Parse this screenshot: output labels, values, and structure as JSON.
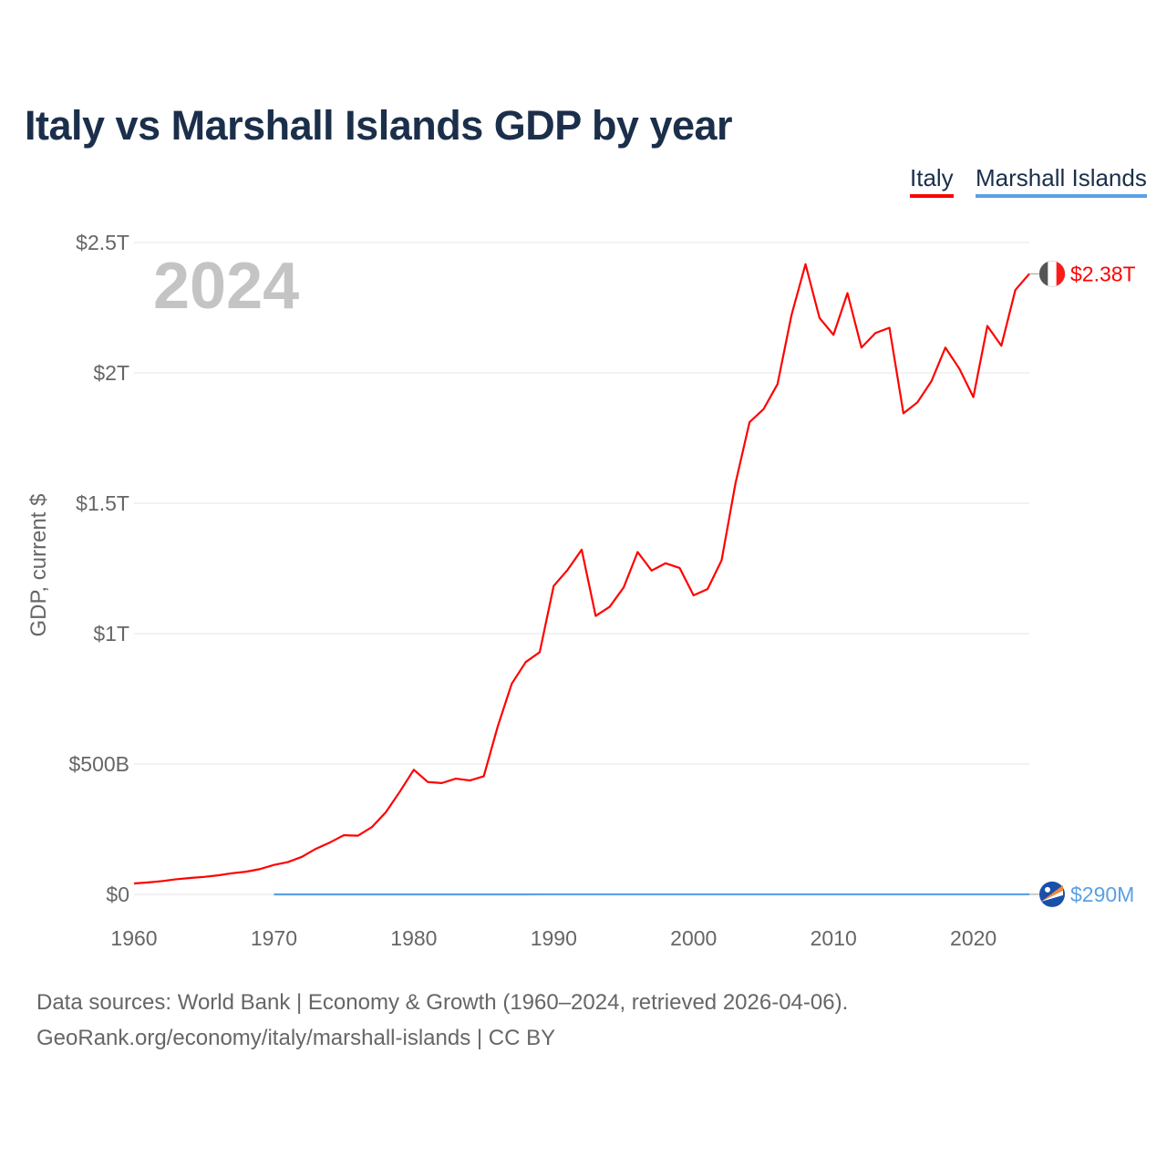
{
  "colors": {
    "italy": "#ff0000",
    "marshall": "#5aa0e6",
    "title": "#1b2f4b",
    "grid": "#e6e6e6",
    "axis_text": "#666666",
    "year_watermark": "#c4c4c4"
  },
  "chart_data": {
    "type": "line",
    "title": "Italy vs Marshall Islands GDP by year",
    "ylabel": "GDP, current $",
    "xlabel": "",
    "xlim": [
      1960,
      2024
    ],
    "ylim": [
      0,
      2.5
    ],
    "y_unit": "trillion USD",
    "grid": true,
    "legend_position": "top-right",
    "year_label": "2024",
    "x_ticks": [
      1960,
      1970,
      1980,
      1990,
      2000,
      2010,
      2020
    ],
    "x_tick_labels": [
      "1960",
      "1970",
      "1980",
      "1990",
      "2000",
      "2010",
      "2020"
    ],
    "y_ticks": [
      0,
      0.5,
      1,
      1.5,
      2,
      2.5
    ],
    "y_tick_labels": [
      "$0",
      "$500B",
      "$1T",
      "$1.5T",
      "$2T",
      "$2.5T"
    ],
    "series": [
      {
        "name": "Italy",
        "color": "#ff0000",
        "end_label": "$2.38T",
        "start_year": 1960,
        "values": [
          0.042,
          0.046,
          0.051,
          0.058,
          0.063,
          0.067,
          0.073,
          0.081,
          0.087,
          0.097,
          0.113,
          0.124,
          0.144,
          0.175,
          0.199,
          0.227,
          0.225,
          0.258,
          0.315,
          0.394,
          0.478,
          0.431,
          0.427,
          0.444,
          0.437,
          0.453,
          0.644,
          0.808,
          0.891,
          0.929,
          1.183,
          1.245,
          1.322,
          1.068,
          1.103,
          1.177,
          1.313,
          1.242,
          1.27,
          1.252,
          1.147,
          1.171,
          1.281,
          1.578,
          1.811,
          1.861,
          1.957,
          2.222,
          2.417,
          2.211,
          2.146,
          2.306,
          2.097,
          2.153,
          2.173,
          1.845,
          1.887,
          1.968,
          2.097,
          2.016,
          1.907,
          2.18,
          2.104,
          2.318,
          2.38
        ]
      },
      {
        "name": "Marshall Islands",
        "color": "#5aa0e6",
        "end_label": "$290M",
        "start_year": 1970,
        "values": [
          3e-05,
          3e-05,
          3e-05,
          4e-05,
          4e-05,
          4e-05,
          5e-05,
          5e-05,
          5e-05,
          6e-05,
          6e-05,
          6e-05,
          7e-05,
          8e-05,
          8e-05,
          9e-05,
          0.0001,
          0.00011,
          0.00013,
          0.00014,
          0.00015,
          0.00016,
          0.00018,
          0.00019,
          0.0002,
          0.0002,
          0.00019,
          0.00017,
          0.00017,
          0.00016,
          0.00017,
          0.00017,
          0.00018,
          0.00018,
          0.00018,
          0.00018,
          0.00018,
          0.00019,
          0.00019,
          0.00019,
          0.0002,
          0.00021,
          0.00021,
          0.00022,
          0.00023,
          0.00022,
          0.00021,
          0.00022,
          0.00023,
          0.00024,
          0.00024,
          0.00026,
          0.00027,
          0.00028,
          0.00029
        ]
      }
    ]
  },
  "legend": {
    "items": [
      "Italy",
      "Marshall Islands"
    ]
  },
  "footer": {
    "line1": "Data sources: World Bank | Economy & Growth (1960–2024, retrieved 2026-04-06).",
    "line2": "GeoRank.org/economy/italy/marshall-islands | CC BY"
  }
}
